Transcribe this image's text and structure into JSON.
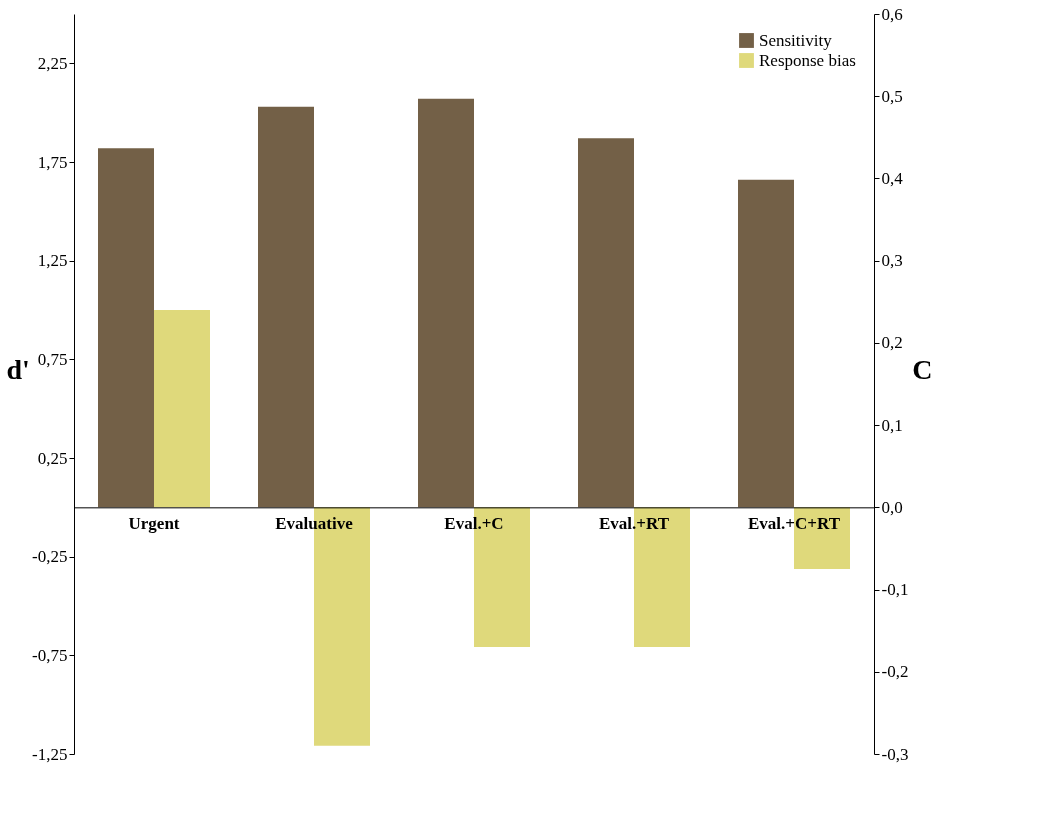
{
  "chart_data": {
    "type": "bar",
    "categories": [
      "Urgent",
      "Evaluative",
      "Eval.+C",
      "Eval.+RT",
      "Eval.+C+RT"
    ],
    "series": [
      {
        "name": "Sensitivity",
        "color": "#736047",
        "values": [
          1.82,
          2.03,
          2.07,
          1.87,
          1.66
        ]
      },
      {
        "name": "Response bias",
        "color": "#dfd97b",
        "axis": "y2",
        "values": [
          0.24,
          -0.29,
          -0.17,
          -0.17,
          -0.075
        ]
      }
    ],
    "ylabel": "d'",
    "y2label": "C",
    "ylim": [
      -1.25,
      2.5
    ],
    "yticks": [
      {
        "value": -1.25,
        "label": "-1,25"
      },
      {
        "value": -0.75,
        "label": "-0,75"
      },
      {
        "value": -0.25,
        "label": "-0,25"
      },
      {
        "value": 0.25,
        "label": "0,25"
      },
      {
        "value": 0.75,
        "label": "0,75"
      },
      {
        "value": 1.25,
        "label": "1,25"
      },
      {
        "value": 1.75,
        "label": "1,75"
      },
      {
        "value": 2.25,
        "label": "2,25"
      }
    ],
    "y2lim": [
      -0.3,
      0.6
    ],
    "y2ticks": [
      {
        "value": -0.3,
        "label": "-0,3"
      },
      {
        "value": -0.2,
        "label": "-0,2"
      },
      {
        "value": -0.1,
        "label": "-0,1"
      },
      {
        "value": 0.0,
        "label": "0,0"
      },
      {
        "value": 0.1,
        "label": "0,1"
      },
      {
        "value": 0.2,
        "label": "0,2"
      },
      {
        "value": 0.3,
        "label": "0,3"
      },
      {
        "value": 0.4,
        "label": "0,4"
      },
      {
        "value": 0.5,
        "label": "0,5"
      },
      {
        "value": 0.6,
        "label": "0,6"
      }
    ],
    "grid": false,
    "legend": "top right"
  }
}
